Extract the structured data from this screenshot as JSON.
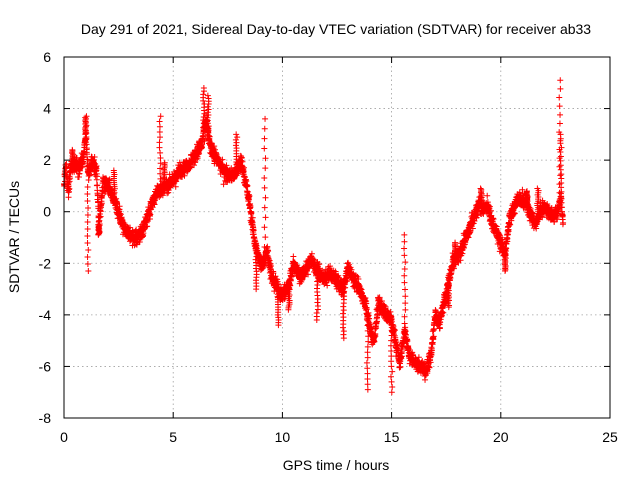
{
  "chart_data": {
    "type": "scatter",
    "title": "Day 291 of 2021, Sidereal Day-to-day VTEC variation (SDTVAR) for receiver ab33",
    "xlabel": "GPS time / hours",
    "ylabel": "SDTVAR / TECUs",
    "xlim": [
      0,
      25
    ],
    "ylim": [
      -8,
      6
    ],
    "xticks": [
      0,
      5,
      10,
      15,
      20,
      25
    ],
    "yticks": [
      -8,
      -6,
      -4,
      -2,
      0,
      2,
      4,
      6
    ],
    "xtick_labels": [
      "0",
      "5",
      "10",
      "15",
      "20",
      "25"
    ],
    "ytick_labels": [
      "-8",
      "-6",
      "-4",
      "-2",
      "0",
      "2",
      "4",
      "6"
    ],
    "grid": true,
    "marker": "+",
    "color": "#ff0000",
    "series": [
      {
        "name": "SDTVAR",
        "trend": [
          [
            0.0,
            1.0
          ],
          [
            0.1,
            1.8
          ],
          [
            0.2,
            0.7
          ],
          [
            0.3,
            1.7
          ],
          [
            0.5,
            1.8
          ],
          [
            0.7,
            1.6
          ],
          [
            0.9,
            2.2
          ],
          [
            1.0,
            3.0
          ],
          [
            1.1,
            1.5
          ],
          [
            1.3,
            2.0
          ],
          [
            1.5,
            1.5
          ],
          [
            1.6,
            -0.5
          ],
          [
            1.8,
            1.2
          ],
          [
            2.0,
            1.0
          ],
          [
            2.3,
            0.5
          ],
          [
            2.6,
            -0.3
          ],
          [
            2.9,
            -0.8
          ],
          [
            3.2,
            -1.0
          ],
          [
            3.5,
            -0.9
          ],
          [
            3.8,
            -0.3
          ],
          [
            4.0,
            0.3
          ],
          [
            4.3,
            0.8
          ],
          [
            4.6,
            1.0
          ],
          [
            5.0,
            1.2
          ],
          [
            5.3,
            1.6
          ],
          [
            5.7,
            1.8
          ],
          [
            6.0,
            2.2
          ],
          [
            6.3,
            2.6
          ],
          [
            6.5,
            3.5
          ],
          [
            6.7,
            2.5
          ],
          [
            7.0,
            2.0
          ],
          [
            7.3,
            1.6
          ],
          [
            7.6,
            1.4
          ],
          [
            7.9,
            1.5
          ],
          [
            8.1,
            2.0
          ],
          [
            8.3,
            1.2
          ],
          [
            8.5,
            0.3
          ],
          [
            8.7,
            -1.0
          ],
          [
            8.9,
            -1.8
          ],
          [
            9.1,
            -2.0
          ],
          [
            9.3,
            -1.5
          ],
          [
            9.5,
            -2.5
          ],
          [
            9.8,
            -3.0
          ],
          [
            10.0,
            -3.3
          ],
          [
            10.3,
            -2.8
          ],
          [
            10.5,
            -2.0
          ],
          [
            10.8,
            -2.5
          ],
          [
            11.0,
            -2.4
          ],
          [
            11.3,
            -1.8
          ],
          [
            11.6,
            -2.3
          ],
          [
            11.9,
            -2.6
          ],
          [
            12.2,
            -2.4
          ],
          [
            12.5,
            -2.7
          ],
          [
            12.8,
            -3.0
          ],
          [
            13.0,
            -2.2
          ],
          [
            13.2,
            -2.5
          ],
          [
            13.5,
            -3.0
          ],
          [
            13.8,
            -3.5
          ],
          [
            14.0,
            -4.5
          ],
          [
            14.2,
            -5.0
          ],
          [
            14.4,
            -3.5
          ],
          [
            14.6,
            -3.8
          ],
          [
            14.8,
            -4.0
          ],
          [
            15.0,
            -4.2
          ],
          [
            15.2,
            -5.2
          ],
          [
            15.4,
            -5.8
          ],
          [
            15.6,
            -4.6
          ],
          [
            15.8,
            -5.5
          ],
          [
            16.0,
            -5.8
          ],
          [
            16.3,
            -6.0
          ],
          [
            16.6,
            -6.2
          ],
          [
            16.8,
            -5.5
          ],
          [
            17.0,
            -4.0
          ],
          [
            17.2,
            -4.3
          ],
          [
            17.4,
            -3.5
          ],
          [
            17.6,
            -2.8
          ],
          [
            17.8,
            -2.0
          ],
          [
            18.0,
            -1.8
          ],
          [
            18.2,
            -1.5
          ],
          [
            18.4,
            -1.0
          ],
          [
            18.6,
            -0.6
          ],
          [
            18.8,
            -0.1
          ],
          [
            19.0,
            0.3
          ],
          [
            19.2,
            0.1
          ],
          [
            19.4,
            0.2
          ],
          [
            19.6,
            -0.4
          ],
          [
            19.8,
            -0.8
          ],
          [
            20.0,
            -1.2
          ],
          [
            20.2,
            -1.6
          ],
          [
            20.4,
            -0.3
          ],
          [
            20.6,
            0.2
          ],
          [
            20.8,
            0.5
          ],
          [
            21.0,
            0.4
          ],
          [
            21.2,
            0.3
          ],
          [
            21.4,
            -0.2
          ],
          [
            21.6,
            -0.5
          ],
          [
            21.8,
            0.0
          ],
          [
            22.0,
            0.2
          ],
          [
            22.2,
            0.0
          ],
          [
            22.4,
            -0.2
          ],
          [
            22.6,
            0.0
          ],
          [
            22.75,
            0.6
          ],
          [
            22.85,
            -0.5
          ]
        ],
        "spikes": [
          [
            1.0,
            3.7
          ],
          [
            1.1,
            -2.3
          ],
          [
            1.6,
            -0.9
          ],
          [
            4.4,
            3.7
          ],
          [
            4.6,
            1.9
          ],
          [
            6.4,
            4.8
          ],
          [
            6.6,
            4.5
          ],
          [
            7.9,
            3.0
          ],
          [
            9.2,
            3.6
          ],
          [
            9.8,
            -4.4
          ],
          [
            10.3,
            -3.8
          ],
          [
            11.6,
            -4.2
          ],
          [
            12.8,
            -4.9
          ],
          [
            13.9,
            -6.9
          ],
          [
            15.0,
            -7.0
          ],
          [
            15.6,
            -0.9
          ],
          [
            17.9,
            -1.2
          ],
          [
            18.5,
            -0.7
          ],
          [
            19.1,
            0.9
          ],
          [
            20.2,
            -2.3
          ],
          [
            21.2,
            0.8
          ],
          [
            21.7,
            0.9
          ],
          [
            22.7,
            5.1
          ],
          [
            22.75,
            3.0
          ],
          [
            0.4,
            2.4
          ],
          [
            2.3,
            1.6
          ],
          [
            8.8,
            -3.0
          ],
          [
            12.0,
            -2.6
          ],
          [
            17.6,
            -3.7
          ]
        ]
      }
    ]
  }
}
